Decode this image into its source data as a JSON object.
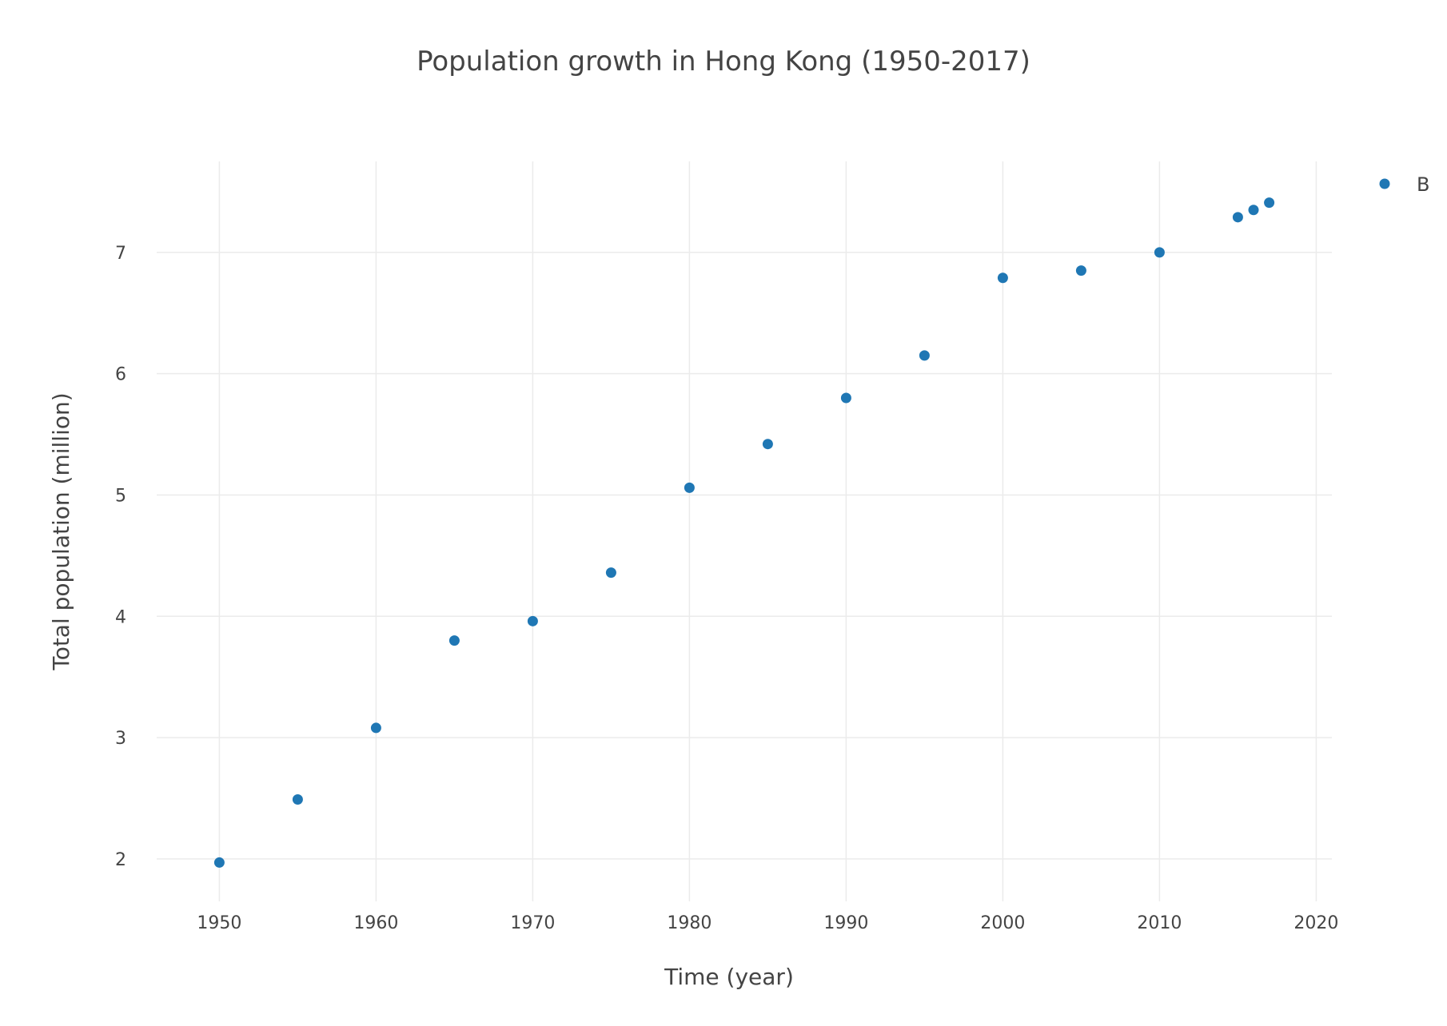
{
  "chart_data": {
    "type": "scatter",
    "title": "Population growth in Hong Kong (1950-2017)",
    "xlabel": "Time (year)",
    "ylabel": "Total population (million)",
    "xlim": [
      1946,
      2021
    ],
    "ylim": [
      1.65,
      7.75
    ],
    "x_ticks": [
      1950,
      1960,
      1970,
      1980,
      1990,
      2000,
      2010,
      2020
    ],
    "y_ticks": [
      2,
      3,
      4,
      5,
      6,
      7
    ],
    "grid": true,
    "legend_position": "top-right",
    "series": [
      {
        "name": "B",
        "color": "#1f77b4",
        "x": [
          1950,
          1955,
          1960,
          1965,
          1970,
          1975,
          1980,
          1985,
          1990,
          1995,
          2000,
          2005,
          2010,
          2015,
          2016,
          2017
        ],
        "y": [
          1.97,
          2.49,
          3.08,
          3.8,
          3.96,
          4.36,
          5.06,
          5.42,
          5.8,
          6.15,
          6.79,
          6.85,
          7.0,
          7.29,
          7.35,
          7.41
        ]
      }
    ]
  }
}
